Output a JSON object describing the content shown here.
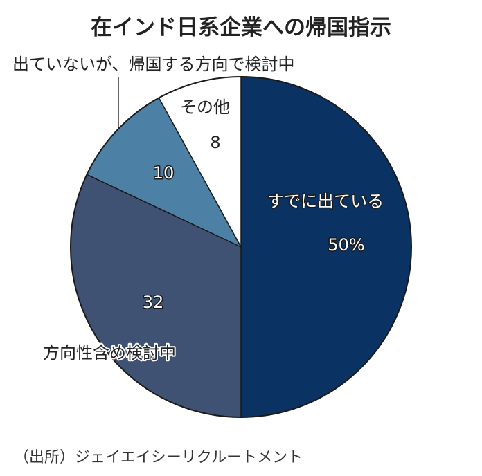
{
  "chart_data": {
    "type": "pie",
    "title": "在インド日系企業への帰国指示",
    "slices": [
      {
        "label": "すでに出ている",
        "value": 50,
        "value_text": "50%",
        "color": "#0a3262"
      },
      {
        "label": "方向性含め検討中",
        "value": 32,
        "value_text": "32",
        "color": "#3f5273"
      },
      {
        "label": "出ていないが、帰国する方向で検討中",
        "value": 10,
        "value_text": "10",
        "color": "#4d80a5"
      },
      {
        "label": "その他",
        "value": 8,
        "value_text": "8",
        "color": "#ffffff"
      }
    ],
    "source": "（出所）ジェイエイシーリクルートメント"
  }
}
